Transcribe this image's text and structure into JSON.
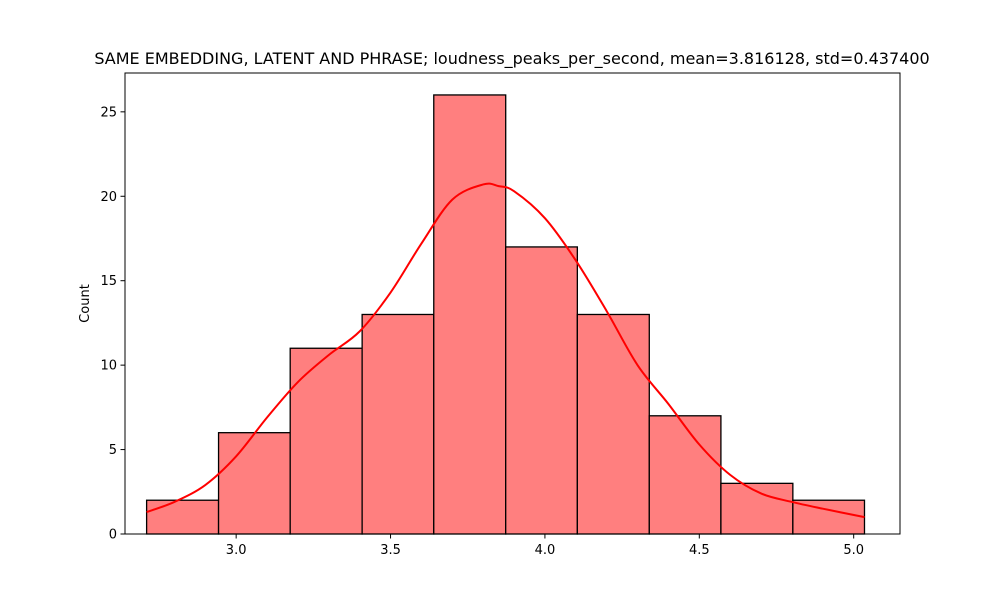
{
  "chart_data": {
    "type": "bar",
    "title": "SAME EMBEDDING, LATENT AND PHRASE; loudness_peaks_per_second, mean=3.816128, std=0.437400",
    "xlabel": "",
    "ylabel": "Count",
    "xlim": [
      2.64,
      5.15
    ],
    "ylim": [
      0,
      27.3
    ],
    "grid": false,
    "legend": "none",
    "bin_edges": [
      2.71,
      2.943,
      3.175,
      3.408,
      3.64,
      3.873,
      4.105,
      4.338,
      4.57,
      4.803,
      5.035
    ],
    "counts": [
      2,
      6,
      11,
      13,
      26,
      17,
      13,
      7,
      3,
      2
    ],
    "kde": {
      "x": [
        2.71,
        2.8,
        2.9,
        3.0,
        3.1,
        3.2,
        3.3,
        3.4,
        3.5,
        3.6,
        3.7,
        3.8,
        3.85,
        3.9,
        4.0,
        4.1,
        4.2,
        4.3,
        4.4,
        4.5,
        4.6,
        4.7,
        4.8,
        4.9,
        5.035
      ],
      "y": [
        1.3,
        1.9,
        2.9,
        4.6,
        6.9,
        9.0,
        10.6,
        12.0,
        14.3,
        17.2,
        19.8,
        20.7,
        20.6,
        20.3,
        18.7,
        16.2,
        13.2,
        10.0,
        7.7,
        5.3,
        3.5,
        2.4,
        1.9,
        1.5,
        1.0
      ]
    },
    "x_ticks": [
      "3.0",
      "3.5",
      "4.0",
      "4.5",
      "5.0"
    ],
    "y_ticks": [
      "0",
      "5",
      "10",
      "15",
      "20",
      "25"
    ],
    "colors": {
      "bar_fill": "#ff7f7f",
      "bar_edge": "#000000",
      "kde_line": "#ff0000"
    }
  }
}
